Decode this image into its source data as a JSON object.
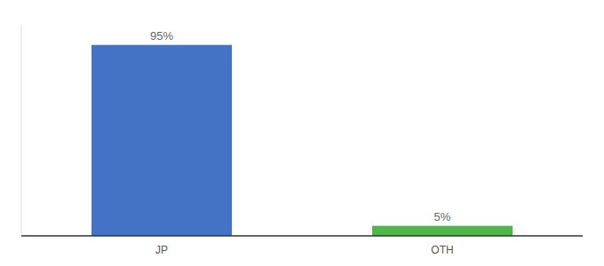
{
  "chart_data": {
    "type": "bar",
    "categories": [
      "JP",
      "OTH"
    ],
    "values": [
      95,
      5
    ],
    "value_labels": [
      "95%",
      "5%"
    ],
    "colors": [
      "#4472c4",
      "#4db848"
    ],
    "ylim": [
      0,
      105
    ],
    "data_labels": true,
    "tick_labels": "x"
  }
}
